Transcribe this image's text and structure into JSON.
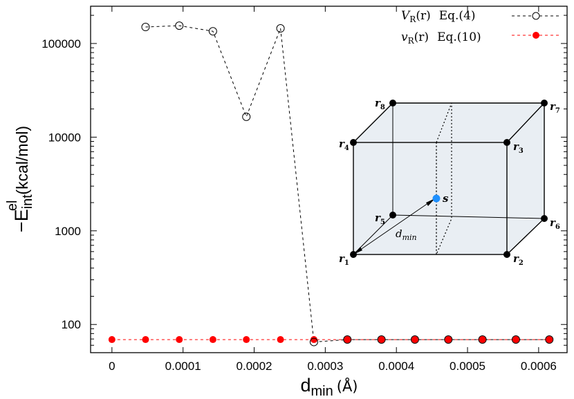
{
  "chart_data": {
    "type": "scatter",
    "title": "",
    "xlabel": "d",
    "xlabel_sub": "min",
    "xlabel_unit": "(Å)",
    "ylabel": "−E",
    "ylabel_sub": "int",
    "ylabel_sup": "el",
    "ylabel_unit": "(kcal/mol)",
    "xlim": [
      -3e-05,
      0.00064
    ],
    "ylim": [
      50,
      250000
    ],
    "y_scale": "log",
    "x_ticks": [
      0,
      0.0001,
      0.0002,
      0.0003,
      0.0004,
      0.0005,
      0.0006
    ],
    "x_tick_labels": [
      "0",
      "0.0001",
      "0.0002",
      "0.0003",
      "0.0004",
      "0.0005",
      "0.0006"
    ],
    "y_ticks": [
      100,
      1000,
      10000,
      100000
    ],
    "y_tick_labels": [
      "100",
      "1000",
      "10000",
      "100000"
    ],
    "legend_position": "top-right",
    "series": [
      {
        "name": "V_R(r) Eq.(4)",
        "legend_symbol": "V",
        "legend_sub": "R",
        "legend_arg": "(r)",
        "legend_eq": "Eq.(4)",
        "style": "open-circle-dashed",
        "color": "#000000",
        "x": [
          4.73e-05,
          9.47e-05,
          0.000142,
          0.000189,
          0.000237,
          0.000284,
          0.000331,
          0.000379,
          0.000426,
          0.000473,
          0.000521,
          0.000568,
          0.000615
        ],
        "values": [
          150000,
          155000,
          135000,
          16500,
          145000,
          65,
          69,
          69,
          69,
          69,
          69,
          69,
          69
        ]
      },
      {
        "name": "v_R(r) Eq.(10)",
        "legend_symbol": "v",
        "legend_sub": "R",
        "legend_arg": "(r)",
        "legend_eq": "Eq.(10)",
        "style": "filled-circle-dashed",
        "color": "#ff0000",
        "x": [
          0,
          4.73e-05,
          9.47e-05,
          0.000142,
          0.000189,
          0.000237,
          0.000284,
          0.000331,
          0.000379,
          0.000426,
          0.000473,
          0.000521,
          0.000568,
          0.000615
        ],
        "values": [
          69,
          69,
          69,
          69,
          69,
          69,
          69,
          69,
          69,
          69,
          69,
          69,
          69,
          69
        ]
      }
    ],
    "inset": {
      "corner_labels": [
        "r",
        "r",
        "r",
        "r",
        "r",
        "r",
        "r",
        "r"
      ],
      "corner_subs": [
        "1",
        "2",
        "3",
        "4",
        "5",
        "6",
        "7",
        "8"
      ],
      "point_label": "s",
      "distance_label": "d",
      "distance_sub": "min",
      "point_color": "#1e90ff",
      "box_fill": "#e9eef3"
    }
  }
}
